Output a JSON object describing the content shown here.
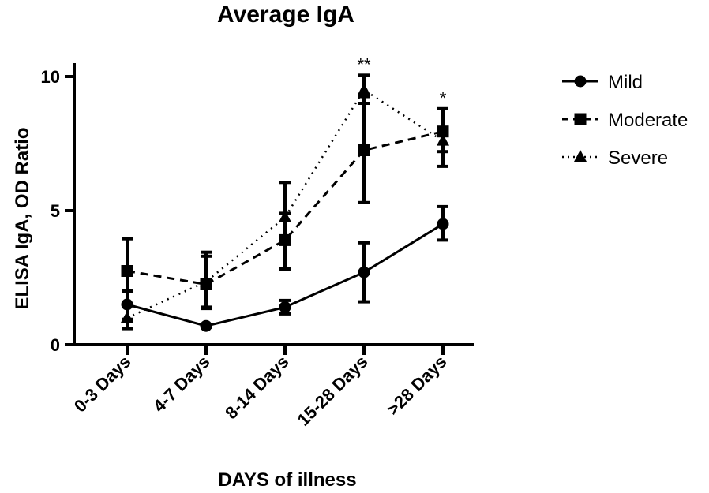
{
  "chart_data": {
    "type": "line",
    "title": "Average IgA",
    "xlabel": "DAYS of illness",
    "ylabel": "ELISA IgA, OD Ratio",
    "categories": [
      "0-3 Days",
      "4-7 Days",
      "8-14 Days",
      "15-28 Days",
      ">28 Days"
    ],
    "ylim": [
      0,
      10.5
    ],
    "yticks": [
      "0",
      "5",
      "10"
    ],
    "legend_position": "right",
    "grid": false,
    "series": [
      {
        "name": "Mild",
        "marker": "circle",
        "line_style": "solid",
        "values": [
          1.5,
          0.7,
          1.4,
          2.7,
          4.5
        ],
        "err_low": [
          0.6,
          0.05,
          0.25,
          1.1,
          0.6
        ],
        "err_high": [
          0.5,
          0.05,
          0.25,
          1.1,
          0.65
        ]
      },
      {
        "name": "Moderate",
        "marker": "square",
        "line_style": "dashed",
        "values": [
          2.75,
          2.25,
          3.9,
          7.25,
          7.95
        ],
        "err_low": [
          1.8,
          0.9,
          1.1,
          1.95,
          1.3
        ],
        "err_high": [
          1.2,
          1.2,
          1.0,
          2.0,
          0.85
        ]
      },
      {
        "name": "Severe",
        "marker": "triangle",
        "line_style": "dotted",
        "values": [
          1.0,
          2.35,
          4.75,
          9.5,
          7.6
        ],
        "err_low": [
          0.4,
          0.95,
          1.9,
          0.5,
          0.4
        ],
        "err_high": [
          0.45,
          0.95,
          1.3,
          0.55,
          0.4
        ]
      }
    ],
    "annotations": [
      {
        "category_index": 3,
        "text": "**"
      },
      {
        "category_index": 4,
        "text": "*"
      }
    ]
  }
}
